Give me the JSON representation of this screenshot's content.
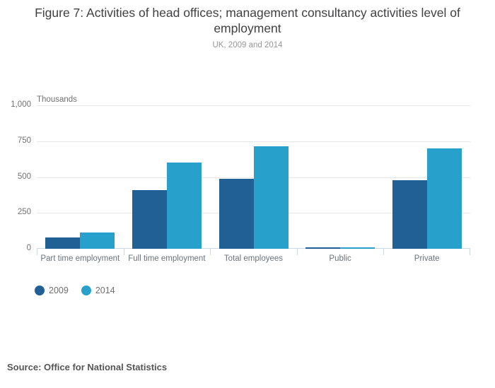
{
  "header": {
    "title": "Figure 7: Activities of head offices; management consultancy activities level of employment",
    "subtitle": "UK, 2009 and 2014"
  },
  "chart_data": {
    "type": "bar",
    "title": "Figure 7: Activities of head offices; management consultancy activities level of employment",
    "subtitle": "UK, 2009 and 2014",
    "unit_label": "Thousands",
    "xlabel": "",
    "ylabel": "Thousands",
    "categories": [
      "Part time employment",
      "Full time employment",
      "Total employees",
      "Public",
      "Private"
    ],
    "series": [
      {
        "name": "2009",
        "color": "#206095",
        "values": [
          78,
          410,
          490,
          11,
          477
        ]
      },
      {
        "name": "2014",
        "color": "#27a0cc",
        "values": [
          114,
          600,
          714,
          11,
          699
        ]
      }
    ],
    "ylim": [
      0,
      1000
    ],
    "yticks": [
      {
        "value": 0,
        "label": "0"
      },
      {
        "value": 250,
        "label": "250"
      },
      {
        "value": 500,
        "label": "500"
      },
      {
        "value": 750,
        "label": "750"
      },
      {
        "value": 1000,
        "label": "1,000"
      }
    ],
    "grid": true,
    "legend_position": "bottom-left"
  },
  "colors": {
    "series_2009": "#206095",
    "series_2014": "#27a0cc",
    "gridline": "#e6e6e6",
    "axis_line": "#c9d7e4",
    "background": "#ffffff"
  },
  "footer": {
    "source": "Source: Office for National Statistics"
  }
}
